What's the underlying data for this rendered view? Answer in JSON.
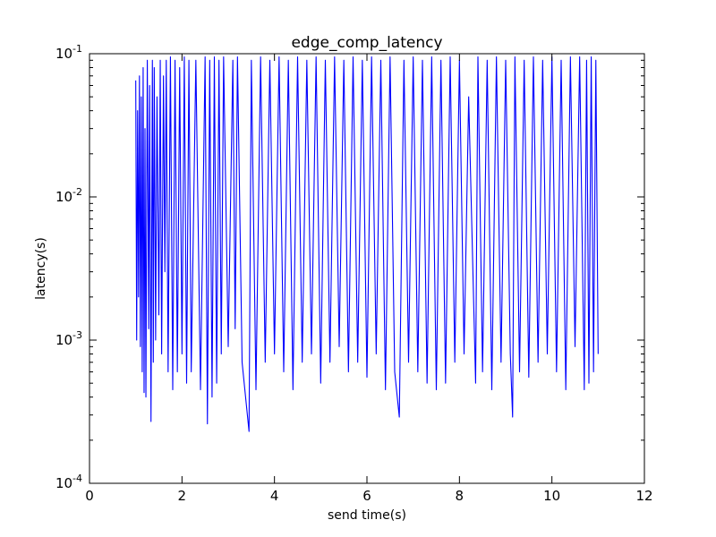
{
  "chart_data": {
    "type": "line",
    "title": "edge_comp_latency",
    "xlabel": "send time(s)",
    "ylabel": "latency(s)",
    "xlim": [
      0,
      12
    ],
    "ylim": [
      0.0001,
      0.1
    ],
    "yscale": "log",
    "grid": false,
    "legend": "none",
    "color": "#0000ff",
    "x_ticks": [
      {
        "label": "0",
        "value": 0
      },
      {
        "label": "2",
        "value": 2
      },
      {
        "label": "4",
        "value": 4
      },
      {
        "label": "6",
        "value": 6
      },
      {
        "label": "8",
        "value": 8
      },
      {
        "label": "10",
        "value": 10
      },
      {
        "label": "12",
        "value": 12
      }
    ],
    "y_ticks": [
      {
        "base": "10",
        "exp": "-4",
        "value": 0.0001
      },
      {
        "base": "10",
        "exp": "-3",
        "value": 0.001
      },
      {
        "base": "10",
        "exp": "-2",
        "value": 0.01
      },
      {
        "base": "10",
        "exp": "-1",
        "value": 0.1
      }
    ],
    "series": [
      {
        "x": [
          1.0,
          1.02,
          1.04,
          1.06,
          1.08,
          1.1,
          1.12,
          1.14,
          1.16,
          1.18,
          1.2,
          1.22,
          1.25,
          1.28,
          1.3,
          1.33,
          1.36,
          1.38,
          1.4,
          1.43,
          1.46,
          1.5,
          1.53,
          1.56,
          1.6,
          1.63,
          1.66,
          1.7,
          1.75,
          1.8,
          1.85,
          1.9,
          1.95,
          2.0,
          2.05,
          2.1,
          2.15,
          2.2,
          2.3,
          2.4,
          2.5,
          2.55,
          2.6,
          2.65,
          2.7,
          2.75,
          2.8,
          2.85,
          2.9,
          3.0,
          3.1,
          3.15,
          3.2,
          3.3,
          3.45,
          3.5,
          3.6,
          3.7,
          3.8,
          3.9,
          4.0,
          4.1,
          4.2,
          4.3,
          4.4,
          4.5,
          4.6,
          4.7,
          4.8,
          4.9,
          5.0,
          5.1,
          5.2,
          5.3,
          5.4,
          5.5,
          5.6,
          5.7,
          5.8,
          5.9,
          6.0,
          6.1,
          6.2,
          6.3,
          6.4,
          6.5,
          6.6,
          6.7,
          6.8,
          6.9,
          7.0,
          7.1,
          7.2,
          7.3,
          7.4,
          7.5,
          7.6,
          7.7,
          7.8,
          7.9,
          8.0,
          8.1,
          8.2,
          8.35,
          8.4,
          8.5,
          8.6,
          8.7,
          8.8,
          8.9,
          9.0,
          9.1,
          9.15,
          9.2,
          9.3,
          9.4,
          9.5,
          9.6,
          9.7,
          9.8,
          9.9,
          10.0,
          10.1,
          10.2,
          10.3,
          10.4,
          10.5,
          10.6,
          10.7,
          10.75,
          10.8,
          10.85,
          10.9,
          10.95,
          11.0
        ],
        "y": [
          0.065,
          0.001,
          0.04,
          0.002,
          0.07,
          0.0009,
          0.05,
          0.0006,
          0.08,
          0.00043,
          0.03,
          0.0004,
          0.09,
          0.0012,
          0.06,
          0.00027,
          0.09,
          0.0007,
          0.08,
          0.001,
          0.05,
          0.0015,
          0.09,
          0.0008,
          0.07,
          0.003,
          0.09,
          0.0006,
          0.095,
          0.00045,
          0.09,
          0.0006,
          0.08,
          0.0008,
          0.095,
          0.0005,
          0.09,
          0.0006,
          0.09,
          0.00045,
          0.095,
          0.00026,
          0.09,
          0.0004,
          0.095,
          0.0005,
          0.09,
          0.0008,
          0.095,
          0.0009,
          0.09,
          0.0012,
          0.095,
          0.0007,
          0.00023,
          0.09,
          0.00045,
          0.095,
          0.0007,
          0.09,
          0.0008,
          0.095,
          0.0006,
          0.09,
          0.00045,
          0.095,
          0.0007,
          0.09,
          0.0008,
          0.095,
          0.0005,
          0.09,
          0.0007,
          0.095,
          0.0009,
          0.09,
          0.0006,
          0.095,
          0.0007,
          0.09,
          0.00055,
          0.095,
          0.0008,
          0.09,
          0.00045,
          0.095,
          0.0006,
          0.00029,
          0.09,
          0.0007,
          0.095,
          0.0006,
          0.09,
          0.0005,
          0.095,
          0.00045,
          0.09,
          0.0005,
          0.095,
          0.0007,
          0.09,
          0.0008,
          0.05,
          0.0005,
          0.095,
          0.0006,
          0.09,
          0.00045,
          0.095,
          0.0007,
          0.09,
          0.0008,
          0.00029,
          0.095,
          0.0006,
          0.09,
          0.00055,
          0.095,
          0.0007,
          0.09,
          0.0008,
          0.095,
          0.0006,
          0.09,
          0.00045,
          0.095,
          0.0009,
          0.095,
          0.00045,
          0.09,
          0.0005,
          0.095,
          0.0006,
          0.09,
          0.0008
        ]
      }
    ]
  }
}
